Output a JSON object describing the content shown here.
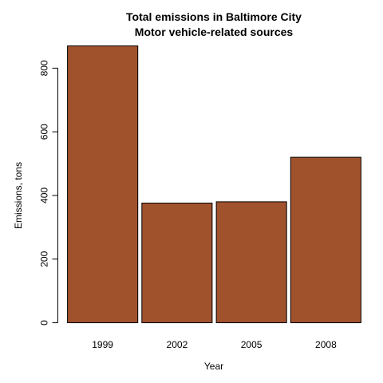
{
  "chart_data": {
    "type": "bar",
    "title": "Total emissions in Baltimore City",
    "subtitle": "Motor vehicle-related sources",
    "xlabel": "Year",
    "ylabel": "Emissions, tons",
    "categories": [
      "1999",
      "2002",
      "2005",
      "2008"
    ],
    "values": [
      870,
      376,
      380,
      520
    ],
    "ylim": [
      0,
      870
    ],
    "yticks": [
      0,
      200,
      400,
      600,
      800
    ],
    "bar_color": "#A0522D",
    "grid": false,
    "legend": "none"
  }
}
